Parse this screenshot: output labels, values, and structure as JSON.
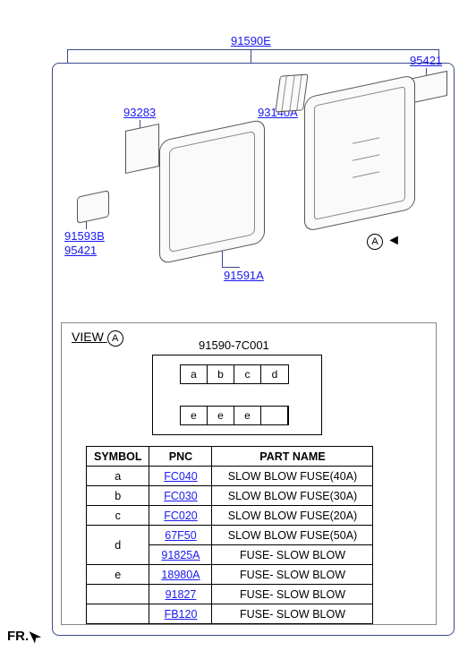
{
  "callouts": {
    "c91590E": "91590E",
    "c95421_top": "95421",
    "c93283": "93283",
    "c93140A": "93140A",
    "c91593B": "91593B",
    "c95421_left": "95421",
    "c91591A": "91591A"
  },
  "view_label": "VIEW",
  "view_letter": "A",
  "fuse_box_label": "91590-7C001",
  "fuse_top_cells": [
    "a",
    "b",
    "c",
    "d"
  ],
  "fuse_bot_cells": [
    "e",
    "e",
    "e",
    ""
  ],
  "table": {
    "headers": [
      "SYMBOL",
      "PNC",
      "PART NAME"
    ],
    "rows": [
      {
        "symbol": "a",
        "pnc": "FC040",
        "name": "SLOW BLOW FUSE(40A)",
        "span": 1
      },
      {
        "symbol": "b",
        "pnc": "FC030",
        "name": "SLOW BLOW FUSE(30A)",
        "span": 1
      },
      {
        "symbol": "c",
        "pnc": "FC020",
        "name": "SLOW BLOW FUSE(20A)",
        "span": 1
      },
      {
        "symbol": "d",
        "pnc": "67F50",
        "name": "SLOW BLOW FUSE(50A)",
        "span": 2
      },
      {
        "symbol": "",
        "pnc": "91825A",
        "name": "FUSE- SLOW BLOW",
        "span": 0
      },
      {
        "symbol": "e",
        "pnc": "18980A",
        "name": "FUSE- SLOW BLOW",
        "span": 1
      },
      {
        "symbol": "",
        "pnc": "91827",
        "name": "FUSE- SLOW BLOW",
        "span": 1
      },
      {
        "symbol": "",
        "pnc": "FB120",
        "name": "FUSE- SLOW BLOW",
        "span": 1
      }
    ]
  },
  "fr_label": "FR.",
  "colors": {
    "link": "#1a1af0",
    "frame": "#3a4a8a"
  }
}
